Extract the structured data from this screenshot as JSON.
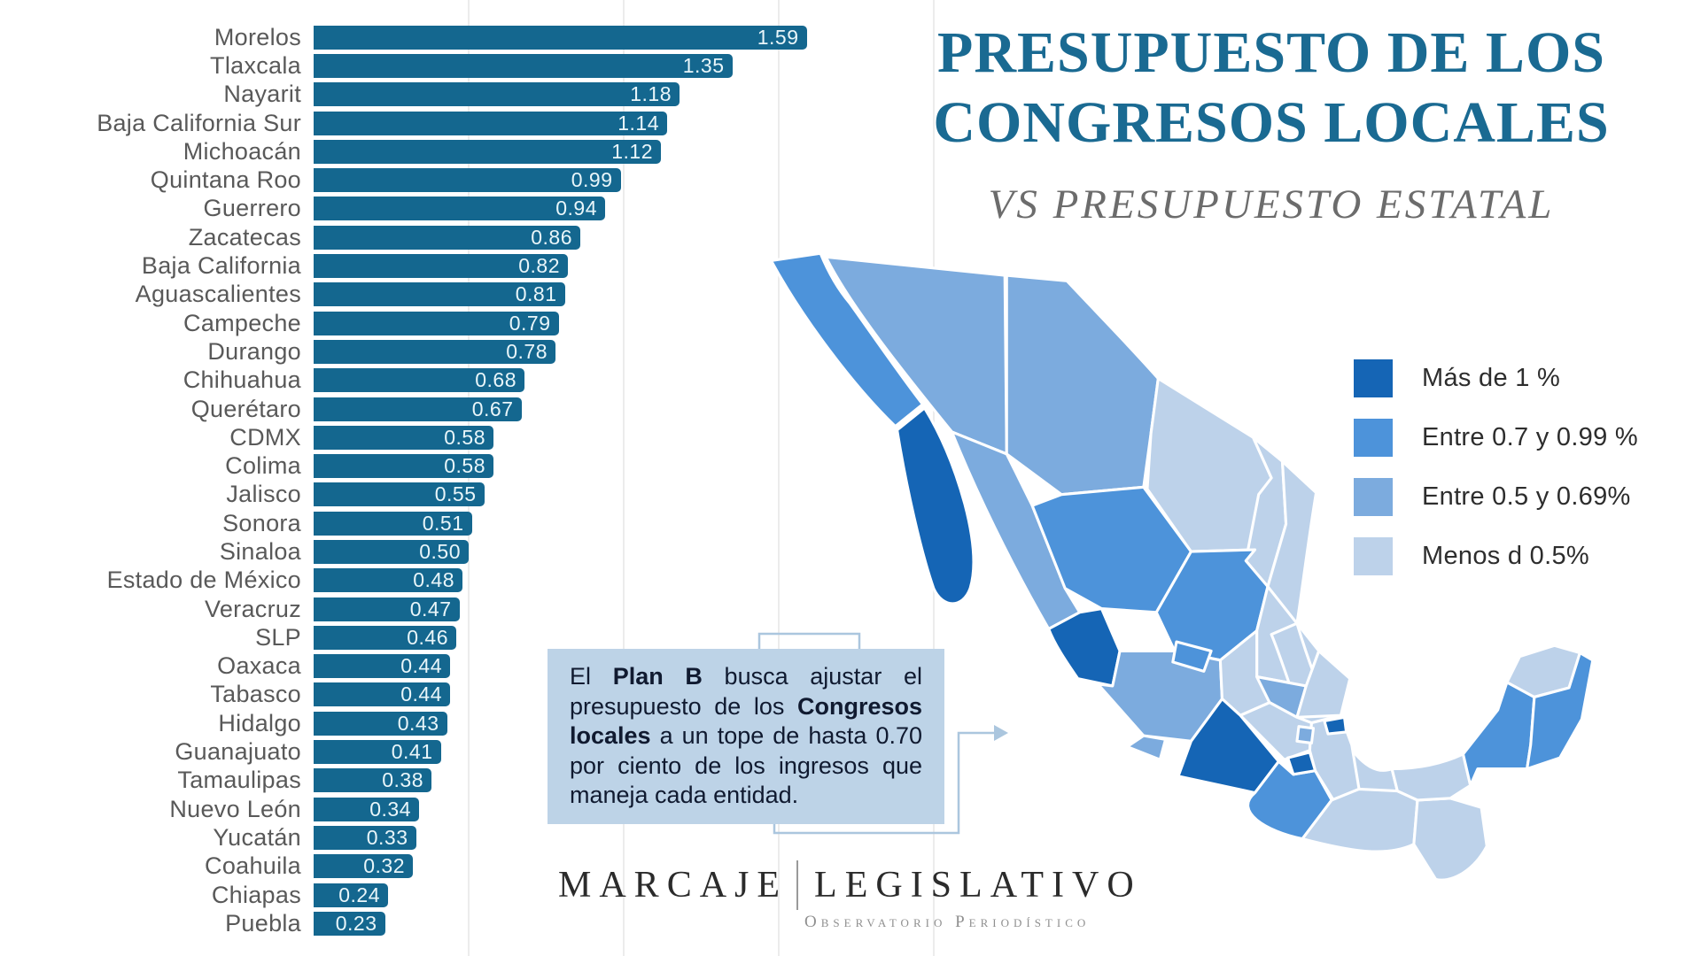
{
  "page": {
    "background": "#ffffff"
  },
  "title": {
    "line1": "PRESUPUESTO DE LOS",
    "line2": "CONGRESOS LOCALES",
    "subtitle": "VS PRESUPUESTO ESTATAL",
    "color": "#1a6a92",
    "subtitle_color": "#6c6c6c"
  },
  "chart_data": {
    "type": "bar",
    "title": "",
    "xlabel": "",
    "ylabel": "",
    "orientation": "horizontal",
    "xlim": [
      0,
      1.7
    ],
    "gridline_values": [
      0.5,
      1.0,
      1.5,
      2.0
    ],
    "bar_color": "#14678f",
    "label_color": "#595959",
    "value_color": "#e9f6fa",
    "categories": [
      "Morelos",
      "Tlaxcala",
      "Nayarit",
      "Baja California Sur",
      "Michoacán",
      "Quintana Roo",
      "Guerrero",
      "Zacatecas",
      "Baja California",
      "Aguascalientes",
      "Campeche",
      "Durango",
      "Chihuahua",
      "Querétaro",
      "CDMX",
      "Colima",
      "Jalisco",
      "Sonora",
      "Sinaloa",
      "Estado de México",
      "Veracruz",
      "SLP",
      "Oaxaca",
      "Tabasco",
      "Hidalgo",
      "Guanajuato",
      "Tamaulipas",
      "Nuevo León",
      "Yucatán",
      "Coahuila",
      "Chiapas",
      "Puebla"
    ],
    "values": [
      1.59,
      1.35,
      1.18,
      1.14,
      1.12,
      0.99,
      0.94,
      0.86,
      0.82,
      0.81,
      0.79,
      0.78,
      0.68,
      0.67,
      0.58,
      0.58,
      0.55,
      0.51,
      0.5,
      0.48,
      0.47,
      0.46,
      0.44,
      0.44,
      0.43,
      0.41,
      0.38,
      0.34,
      0.33,
      0.32,
      0.24,
      0.23
    ],
    "value_labels": [
      "1.59",
      "1.35",
      "1.18",
      "1.14",
      "1.12",
      "0.99",
      "0.94",
      "0.86",
      "0.82",
      "0.81",
      "0.79",
      "0.78",
      "0.68",
      "0.67",
      "0.58",
      "0.58",
      "0.55",
      "0.51",
      "0.50",
      "0.48",
      "0.47",
      "0.46",
      "0.44",
      "0.44",
      "0.43",
      "0.41",
      "0.38",
      "0.34",
      "0.33",
      "0.32",
      "0.24",
      "0.23"
    ]
  },
  "legend": {
    "items": [
      {
        "label": "Más de 1 %",
        "color": "#1565b5",
        "min": 1.0
      },
      {
        "label": "Entre 0.7 y 0.99 %",
        "color": "#4d93da",
        "min": 0.7
      },
      {
        "label": "Entre 0.5 y 0.69%",
        "color": "#7cabde",
        "min": 0.5
      },
      {
        "label": "Menos d 0.5%",
        "color": "#bdd2ea",
        "min": 0
      }
    ]
  },
  "map": {
    "stroke": "#ffffff"
  },
  "callout": {
    "background": "#bdd3e7",
    "text_color": "#101a30",
    "segments": [
      {
        "t": "El ",
        "b": false
      },
      {
        "t": "Plan B",
        "b": true
      },
      {
        "t": " busca ajustar el presupuesto de los ",
        "b": false
      },
      {
        "t": "Congresos locales",
        "b": true
      },
      {
        "t": " a un tope de hasta 0.70 por ciento de los ingresos que maneja cada entidad.",
        "b": false
      }
    ]
  },
  "logo": {
    "word1": "MARCAJE",
    "word2": "LEGISLATIVO",
    "tagline": "Observatorio Periodístico"
  }
}
